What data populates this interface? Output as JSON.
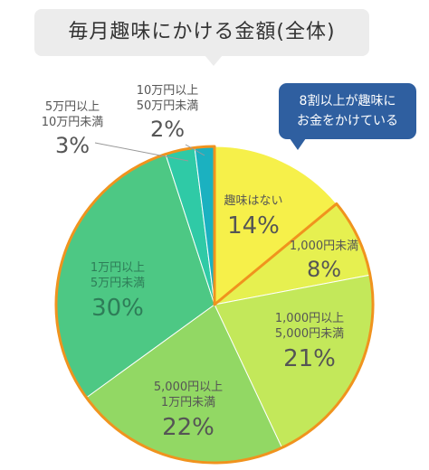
{
  "title": "毎月趣味にかける金額(全体)",
  "note": "8割以上が趣味に\nお金をかけている",
  "chart_data": {
    "type": "pie",
    "title": "毎月趣味にかける金額(全体)",
    "start_angle_deg": 0,
    "direction": "clockwise",
    "highlight_group": "8割以上が趣味にお金をかけている",
    "slices": [
      {
        "label": "趣味はない",
        "value": 14,
        "display": "14%",
        "color": "#f6f04a",
        "highlight": false
      },
      {
        "label": "1,000円未満",
        "value": 8,
        "display": "8%",
        "color": "#e6f050",
        "highlight": true
      },
      {
        "label": "1,000円以上\n5,000円未満",
        "value": 21,
        "display": "21%",
        "color": "#c3e85a",
        "highlight": true
      },
      {
        "label": "5,000円以上\n1万円未満",
        "value": 22,
        "display": "22%",
        "color": "#92d864",
        "highlight": true
      },
      {
        "label": "1万円以上\n5万円未満",
        "value": 30,
        "display": "30%",
        "color": "#4dc884",
        "highlight": true
      },
      {
        "label": "5万円以上\n10万円未満",
        "value": 3,
        "display": "3%",
        "color": "#2fcaa6",
        "highlight": true
      },
      {
        "label": "10万円以上\n50万円未満",
        "value": 2,
        "display": "2%",
        "color": "#1bb1c0",
        "highlight": true
      }
    ]
  }
}
